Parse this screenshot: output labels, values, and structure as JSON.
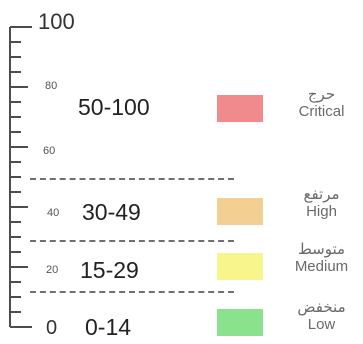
{
  "scale": {
    "major_ticks": [
      {
        "value": 100,
        "label": "100"
      },
      {
        "value": 0,
        "label": "0"
      }
    ],
    "minor_ticks": [
      {
        "value": 80,
        "label": "80"
      },
      {
        "value": 60,
        "label": "60"
      },
      {
        "value": 40,
        "label": "40"
      },
      {
        "value": 20,
        "label": "20"
      }
    ]
  },
  "levels": [
    {
      "range": "50-100",
      "label_ar": "حرج",
      "label_en": "Critical",
      "color": "#f08a8c"
    },
    {
      "range": "30-49",
      "label_ar": "مرتفع",
      "label_en": "High",
      "color": "#f3cf94"
    },
    {
      "range": "15-29",
      "label_ar": "متوسط",
      "label_en": "Medium",
      "color": "#f8f58c"
    },
    {
      "range": "0-14",
      "label_ar": "منخفض",
      "label_en": "Low",
      "color": "#8ae38c"
    }
  ]
}
